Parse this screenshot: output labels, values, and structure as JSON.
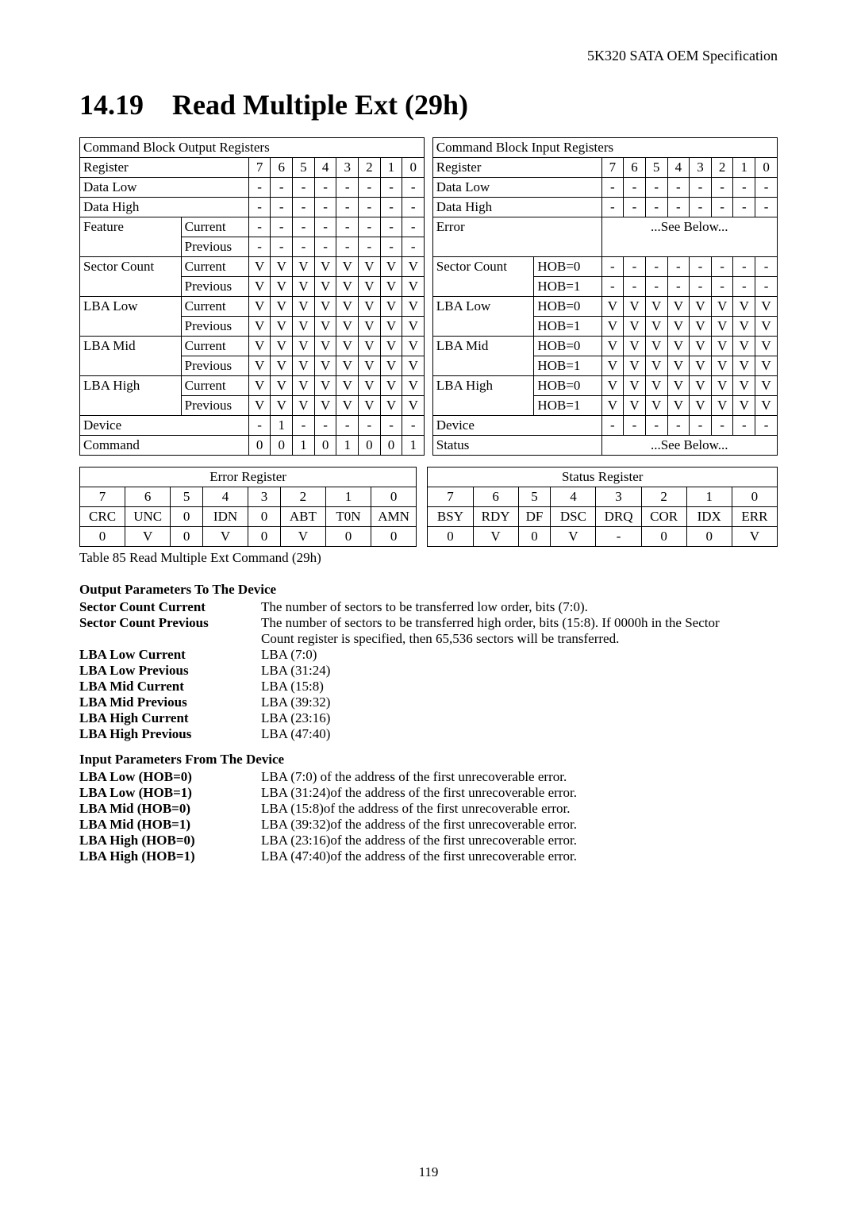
{
  "header": {
    "runhead": "5K320 SATA OEM Specification"
  },
  "section": {
    "number": "14.19",
    "title": "Read Multiple Ext (29h)"
  },
  "cbo": {
    "title": "Command Block Output Registers",
    "bits": [
      "7",
      "6",
      "5",
      "4",
      "3",
      "2",
      "1",
      "0"
    ],
    "rows": [
      {
        "labelA": "Register",
        "labelB": "",
        "cells": [
          "7",
          "6",
          "5",
          "4",
          "3",
          "2",
          "1",
          "0"
        ],
        "header": true
      },
      {
        "labelA": "Data Low",
        "labelB": "",
        "cells": [
          "-",
          "-",
          "-",
          "-",
          "-",
          "-",
          "-",
          "-"
        ]
      },
      {
        "labelA": "Data High",
        "labelB": "",
        "cells": [
          "-",
          "-",
          "-",
          "-",
          "-",
          "-",
          "-",
          "-"
        ]
      },
      {
        "labelA": "Feature",
        "labelB": "Current",
        "cells": [
          "-",
          "-",
          "-",
          "-",
          "-",
          "-",
          "-",
          "-"
        ]
      },
      {
        "labelA": "",
        "labelB": "Previous",
        "cells": [
          "-",
          "-",
          "-",
          "-",
          "-",
          "-",
          "-",
          "-"
        ]
      },
      {
        "labelA": "Sector Count",
        "labelB": "Current",
        "cells": [
          "V",
          "V",
          "V",
          "V",
          "V",
          "V",
          "V",
          "V"
        ]
      },
      {
        "labelA": "",
        "labelB": "Previous",
        "cells": [
          "V",
          "V",
          "V",
          "V",
          "V",
          "V",
          "V",
          "V"
        ]
      },
      {
        "labelA": "LBA Low",
        "labelB": "Current",
        "cells": [
          "V",
          "V",
          "V",
          "V",
          "V",
          "V",
          "V",
          "V"
        ]
      },
      {
        "labelA": "",
        "labelB": "Previous",
        "cells": [
          "V",
          "V",
          "V",
          "V",
          "V",
          "V",
          "V",
          "V"
        ]
      },
      {
        "labelA": "LBA Mid",
        "labelB": "Current",
        "cells": [
          "V",
          "V",
          "V",
          "V",
          "V",
          "V",
          "V",
          "V"
        ]
      },
      {
        "labelA": "",
        "labelB": "Previous",
        "cells": [
          "V",
          "V",
          "V",
          "V",
          "V",
          "V",
          "V",
          "V"
        ]
      },
      {
        "labelA": "LBA High",
        "labelB": "Current",
        "cells": [
          "V",
          "V",
          "V",
          "V",
          "V",
          "V",
          "V",
          "V"
        ]
      },
      {
        "labelA": "",
        "labelB": "Previous",
        "cells": [
          "V",
          "V",
          "V",
          "V",
          "V",
          "V",
          "V",
          "V"
        ]
      },
      {
        "labelA": "Device",
        "labelB": "",
        "cells": [
          "-",
          "1",
          "-",
          "-",
          "-",
          "-",
          "-",
          "-"
        ]
      },
      {
        "labelA": "Command",
        "labelB": "",
        "cells": [
          "0",
          "0",
          "1",
          "0",
          "1",
          "0",
          "0",
          "1"
        ]
      }
    ]
  },
  "cbi": {
    "title": "Command Block Input Registers",
    "rows": [
      {
        "labelA": "Register",
        "labelB": "",
        "cells": [
          "7",
          "6",
          "5",
          "4",
          "3",
          "2",
          "1",
          "0"
        ],
        "header": true
      },
      {
        "labelA": "Data Low",
        "labelB": "",
        "cells": [
          "-",
          "-",
          "-",
          "-",
          "-",
          "-",
          "-",
          "-"
        ]
      },
      {
        "labelA": "Data High",
        "labelB": "",
        "cells": [
          "-",
          "-",
          "-",
          "-",
          "-",
          "-",
          "-",
          "-"
        ]
      },
      {
        "labelA": "Error",
        "labelB": "",
        "see": "...See Below...",
        "span": true
      },
      {
        "labelA": "",
        "labelB": "",
        "blank": true
      },
      {
        "labelA": "Sector Count",
        "labelB": "HOB=0",
        "cells": [
          "-",
          "-",
          "-",
          "-",
          "-",
          "-",
          "-",
          "-"
        ]
      },
      {
        "labelA": "",
        "labelB": "HOB=1",
        "cells": [
          "-",
          "-",
          "-",
          "-",
          "-",
          "-",
          "-",
          "-"
        ]
      },
      {
        "labelA": "LBA Low",
        "labelB": "HOB=0",
        "cells": [
          "V",
          "V",
          "V",
          "V",
          "V",
          "V",
          "V",
          "V"
        ]
      },
      {
        "labelA": "",
        "labelB": "HOB=1",
        "cells": [
          "V",
          "V",
          "V",
          "V",
          "V",
          "V",
          "V",
          "V"
        ]
      },
      {
        "labelA": "LBA Mid",
        "labelB": "HOB=0",
        "cells": [
          "V",
          "V",
          "V",
          "V",
          "V",
          "V",
          "V",
          "V"
        ]
      },
      {
        "labelA": "",
        "labelB": "HOB=1",
        "cells": [
          "V",
          "V",
          "V",
          "V",
          "V",
          "V",
          "V",
          "V"
        ]
      },
      {
        "labelA": "LBA High",
        "labelB": "HOB=0",
        "cells": [
          "V",
          "V",
          "V",
          "V",
          "V",
          "V",
          "V",
          "V"
        ]
      },
      {
        "labelA": "",
        "labelB": "HOB=1",
        "cells": [
          "V",
          "V",
          "V",
          "V",
          "V",
          "V",
          "V",
          "V"
        ]
      },
      {
        "labelA": "Device",
        "labelB": "",
        "cells": [
          "-",
          "-",
          "-",
          "-",
          "-",
          "-",
          "-",
          "-"
        ]
      },
      {
        "labelA": "Status",
        "labelB": "",
        "see": "...See Below...",
        "span": true
      }
    ]
  },
  "err_status": {
    "left_title": "Error Register",
    "right_title": "Status Register",
    "bitrow": [
      "7",
      "6",
      "5",
      "4",
      "3",
      "2",
      "1",
      "0"
    ],
    "err_names": [
      "CRC",
      "UNC",
      "0",
      "IDN",
      "0",
      "ABT",
      "T0N",
      "AMN"
    ],
    "err_vals": [
      "0",
      "V",
      "0",
      "V",
      "0",
      "V",
      "0",
      "0"
    ],
    "status_names": [
      "BSY",
      "RDY",
      "DF",
      "DSC",
      "DRQ",
      "COR",
      "IDX",
      "ERR"
    ],
    "status_vals": [
      "0",
      "V",
      "0",
      "V",
      "-",
      "0",
      "0",
      "V"
    ]
  },
  "table_caption": "Table 85 Read Multiple Ext Command (29h)",
  "params": {
    "out_title": "Output Parameters To The Device",
    "in_title": "Input Parameters From The Device",
    "out": [
      {
        "k": "Sector Count Current",
        "v": "The number of sectors to be transferred low order, bits (7:0)."
      },
      {
        "k": "Sector Count Previous",
        "v": "The number of sectors to be transferred high order, bits (15:8). If 0000h in the Sector"
      },
      {
        "k": "",
        "v": "Count register is specified, then 65,536 sectors will be transferred."
      },
      {
        "k": "LBA Low Current",
        "v": "LBA (7:0)"
      },
      {
        "k": "LBA Low Previous",
        "v": "LBA (31:24)"
      },
      {
        "k": "LBA Mid Current",
        "v": "LBA (15:8)"
      },
      {
        "k": "LBA Mid Previous",
        "v": "LBA (39:32)"
      },
      {
        "k": "LBA High Current",
        "v": "LBA (23:16)"
      },
      {
        "k": "LBA High Previous",
        "v": "LBA (47:40)"
      }
    ],
    "in": [
      {
        "k": "LBA Low (HOB=0)",
        "v": "LBA (7:0) of the address of the first unrecoverable error."
      },
      {
        "k": "LBA Low (HOB=1)",
        "v": "LBA (31:24)of the address of the first unrecoverable error."
      },
      {
        "k": "LBA Mid (HOB=0)",
        "v": "LBA (15:8)of the address of the first unrecoverable error."
      },
      {
        "k": "LBA Mid (HOB=1)",
        "v": "LBA (39:32)of the address of the first unrecoverable error."
      },
      {
        "k": "LBA High (HOB=0)",
        "v": "LBA (23:16)of the address of the first unrecoverable error."
      },
      {
        "k": "LBA High (HOB=1)",
        "v": "LBA (47:40)of the address of the first unrecoverable error."
      }
    ]
  },
  "pagenum": "119",
  "style": {
    "text_color": "#000000",
    "bg_color": "#ffffff",
    "border_color": "#000000",
    "base_fontsize": 17,
    "heading_fontsize": 36
  }
}
